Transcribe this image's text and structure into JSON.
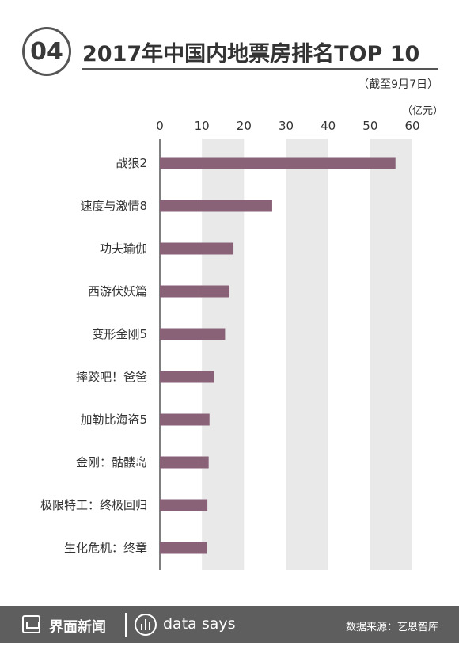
{
  "header": {
    "number": "04",
    "title": "2017年中国内地票房排名TOP 10",
    "note": "（截至9月7日）"
  },
  "chart_data": {
    "type": "bar",
    "orientation": "horizontal",
    "unit_label": "（亿元）",
    "xlim": [
      0,
      60
    ],
    "ticks": [
      0,
      10,
      20,
      30,
      40,
      50,
      60
    ],
    "categories": [
      "战狼2",
      "速度与激情8",
      "功夫瑜伽",
      "西游伏妖篇",
      "变形金刚5",
      "摔跤吧！爸爸",
      "加勒比海盗5",
      "金刚：骷髅岛",
      "极限特工：终极回归",
      "生化危机：终章"
    ],
    "values": [
      56.0,
      26.7,
      17.5,
      16.5,
      15.5,
      12.9,
      11.8,
      11.6,
      11.3,
      11.1
    ],
    "bar_color": "#8a6278",
    "band_color": "#e9e9e9",
    "grid": "alternating vertical bands"
  },
  "footer": {
    "brand": "界面新闻",
    "tagline": "data says",
    "source": "数据来源：艺恩智库",
    "background": "#5e5e5e"
  }
}
